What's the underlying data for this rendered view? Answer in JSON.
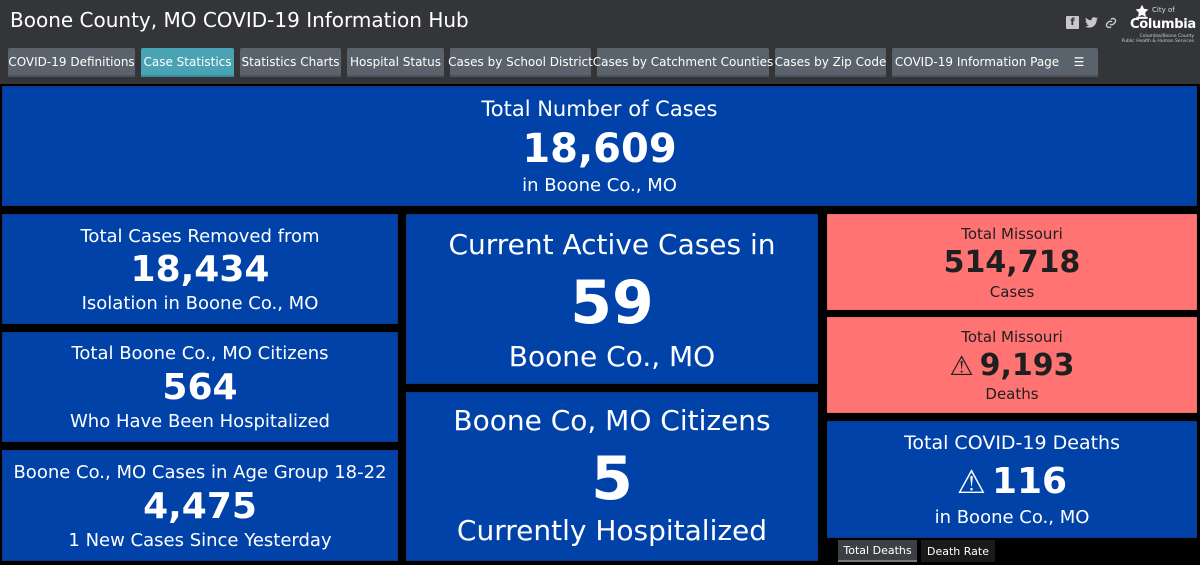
{
  "header": {
    "title": "Boone County, MO COVID-19 Information Hub",
    "social": {
      "facebook": "f",
      "twitter": "🐦",
      "link": "🔗"
    },
    "logo": {
      "small": "City of",
      "name": "Columbia",
      "sub1": "Columbia/Boone County",
      "sub2": "Public Health & Human Services"
    }
  },
  "tabs": [
    {
      "label": "COVID-19 Definitions"
    },
    {
      "label": "Case Statistics"
    },
    {
      "label": "Statistics Charts"
    },
    {
      "label": "Hospital Status"
    },
    {
      "label": "Cases by School District"
    },
    {
      "label": "Cases by Catchment Counties"
    },
    {
      "label": "Cases by Zip Code"
    },
    {
      "label": "COVID-19 Information Page"
    },
    {
      "label": "☰"
    }
  ],
  "active_tab": "Case Statistics",
  "total_cases": {
    "label": "Total Number of Cases",
    "value": "18,609",
    "sub": "in Boone Co., MO"
  },
  "removed": {
    "label": "Total Cases Removed from",
    "value": "18,434",
    "sub": "Isolation in Boone Co., MO"
  },
  "hospitalized_total": {
    "label": "Total Boone Co., MO Citizens",
    "value": "564",
    "sub": "Who Have Been Hospitalized"
  },
  "age_group": {
    "label": "Boone Co., MO Cases in Age Group 18-22",
    "value": "4,475",
    "sub": "1 New Cases Since Yesterday"
  },
  "active": {
    "label": "Current Active Cases in",
    "value": "59",
    "sub": "Boone Co., MO"
  },
  "current_hosp": {
    "label": "Boone Co, MO Citizens",
    "value": "5",
    "sub": "Currently Hospitalized"
  },
  "mo_cases": {
    "label": "Total Missouri",
    "value": "514,718",
    "sub": "Cases"
  },
  "mo_deaths": {
    "label": "Total Missouri",
    "value": "9,193",
    "sub": "Deaths",
    "icon": "⚠"
  },
  "covid_deaths": {
    "label": "Total COVID-19 Deaths",
    "value": "116",
    "sub": "in Boone Co., MO",
    "icon": "⚠"
  },
  "bottom_tabs": [
    {
      "label": "Total Deaths"
    },
    {
      "label": "Death Rate"
    }
  ],
  "colors": {
    "header": "#333539",
    "panel_blue": "#0042a8",
    "panel_red": "#ff7373",
    "tab": "#5a636b",
    "tab_active": "#4aa3b5"
  }
}
